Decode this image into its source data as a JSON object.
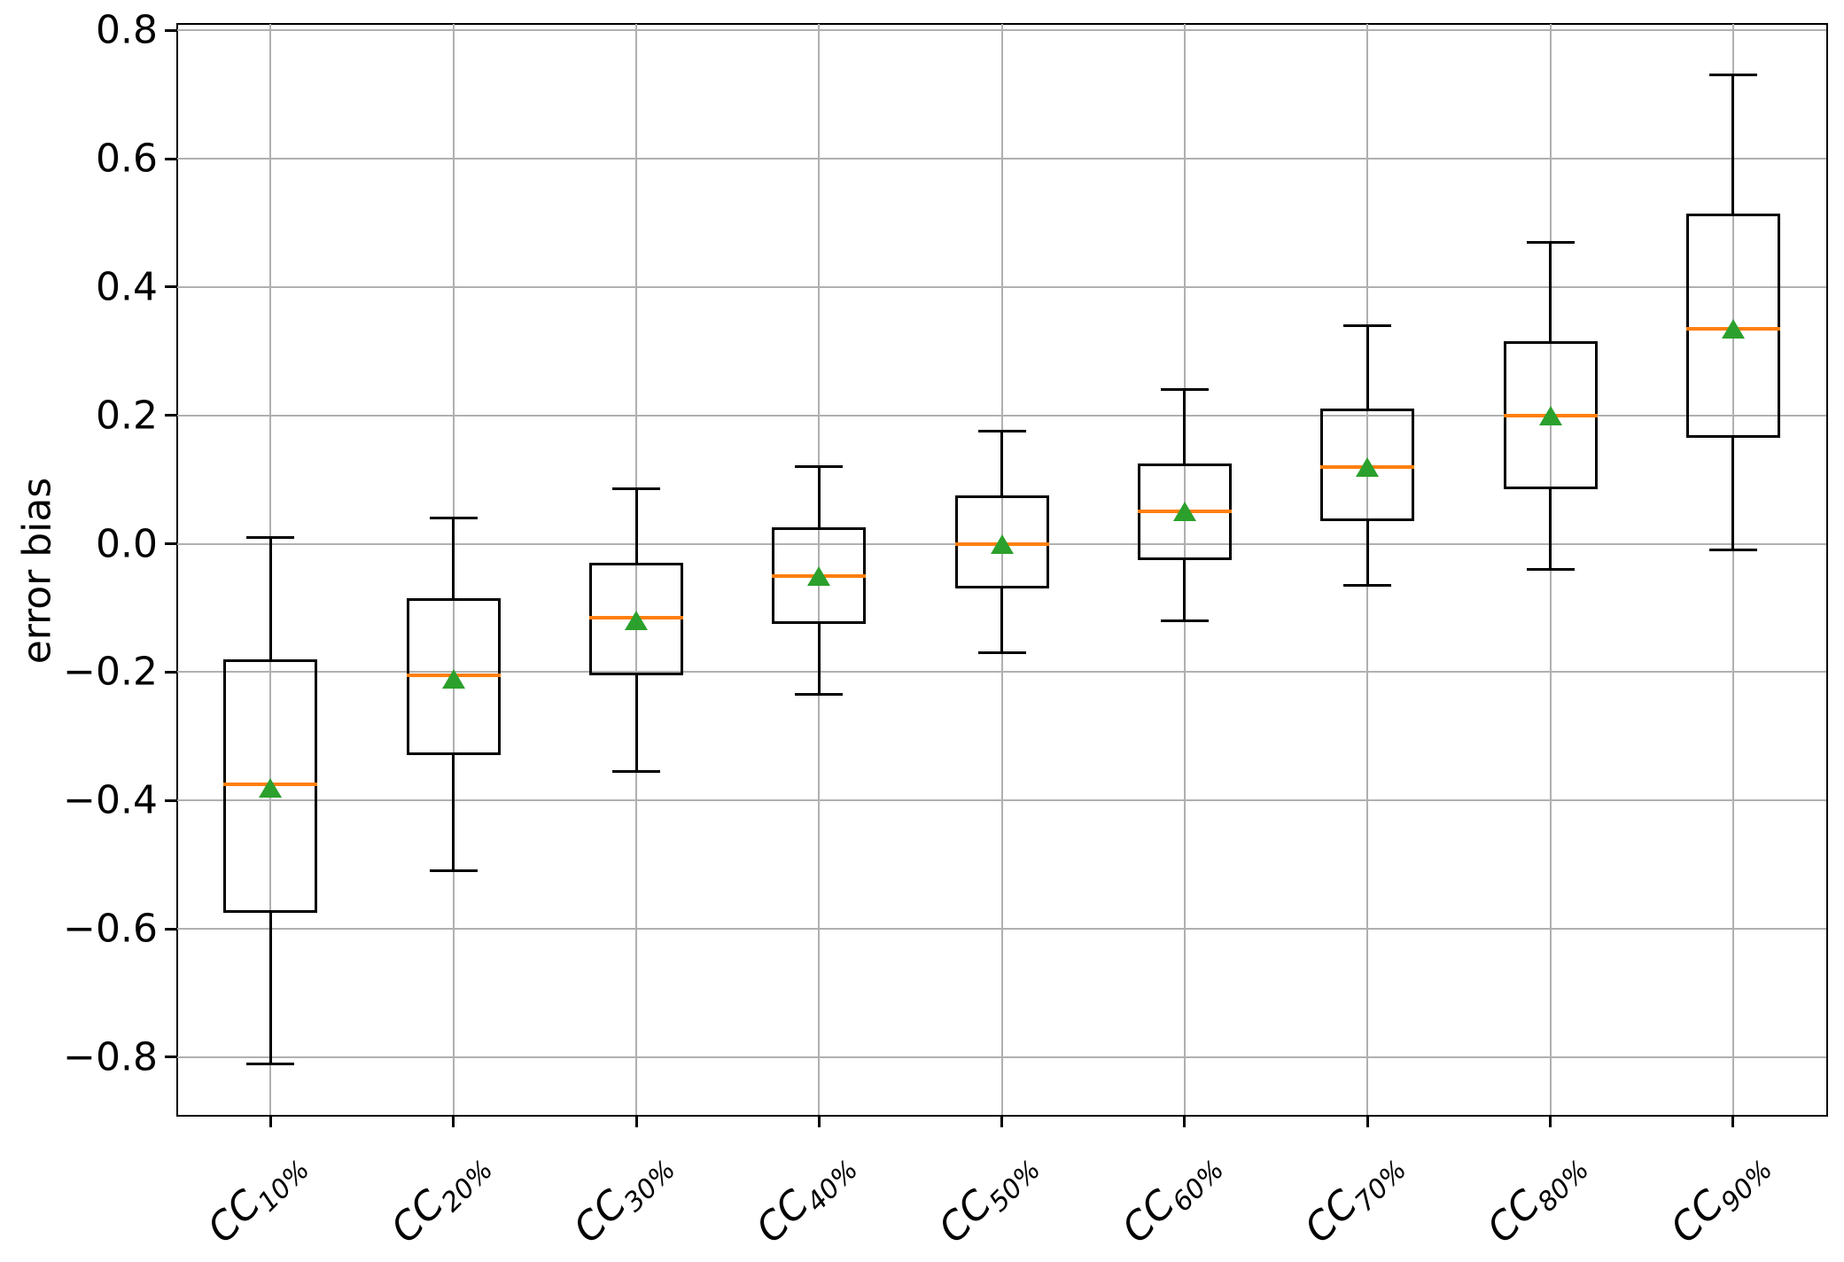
{
  "chart_data": {
    "type": "boxplot",
    "title": "",
    "xlabel": "",
    "ylabel": "error bias",
    "ylim": [
      -0.89,
      0.81
    ],
    "yticks": [
      0.8,
      0.6,
      0.4,
      0.2,
      0.0,
      -0.2,
      -0.4,
      -0.6,
      -0.8
    ],
    "ytick_labels": [
      "0.8",
      "0.6",
      "0.4",
      "0.2",
      "0.0",
      "−0.2",
      "−0.4",
      "−0.6",
      "−0.8"
    ],
    "grid": true,
    "legend": false,
    "xtick_rotation_deg": 45,
    "categories": [
      "CC10%",
      "CC20%",
      "CC30%",
      "CC40%",
      "CC50%",
      "CC60%",
      "CC70%",
      "CC80%",
      "CC90%"
    ],
    "boxes": [
      {
        "label_base": "CC",
        "label_sub": "10%",
        "whisker_low": -0.81,
        "q1": -0.575,
        "median": -0.375,
        "mean": -0.38,
        "q3": -0.18,
        "whisker_high": 0.01
      },
      {
        "label_base": "CC",
        "label_sub": "20%",
        "whisker_low": -0.51,
        "q1": -0.33,
        "median": -0.205,
        "mean": -0.21,
        "q3": -0.085,
        "whisker_high": 0.04
      },
      {
        "label_base": "CC",
        "label_sub": "30%",
        "whisker_low": -0.355,
        "q1": -0.205,
        "median": -0.115,
        "mean": -0.12,
        "q3": -0.03,
        "whisker_high": 0.085
      },
      {
        "label_base": "CC",
        "label_sub": "40%",
        "whisker_low": -0.235,
        "q1": -0.125,
        "median": -0.05,
        "mean": -0.05,
        "q3": 0.025,
        "whisker_high": 0.12
      },
      {
        "label_base": "CC",
        "label_sub": "50%",
        "whisker_low": -0.17,
        "q1": -0.07,
        "median": 0.0,
        "mean": 0.0,
        "q3": 0.075,
        "whisker_high": 0.175
      },
      {
        "label_base": "CC",
        "label_sub": "60%",
        "whisker_low": -0.12,
        "q1": -0.025,
        "median": 0.05,
        "mean": 0.05,
        "q3": 0.125,
        "whisker_high": 0.24
      },
      {
        "label_base": "CC",
        "label_sub": "70%",
        "whisker_low": -0.065,
        "q1": 0.035,
        "median": 0.12,
        "mean": 0.12,
        "q3": 0.21,
        "whisker_high": 0.34
      },
      {
        "label_base": "CC",
        "label_sub": "80%",
        "whisker_low": -0.04,
        "q1": 0.085,
        "median": 0.2,
        "mean": 0.2,
        "q3": 0.315,
        "whisker_high": 0.47
      },
      {
        "label_base": "CC",
        "label_sub": "90%",
        "whisker_low": -0.01,
        "q1": 0.165,
        "median": 0.335,
        "mean": 0.335,
        "q3": 0.515,
        "whisker_high": 0.73
      }
    ],
    "colors": {
      "box_line": "#000000",
      "median_line": "#ff7f0e",
      "mean_marker": "#2ca02c",
      "grid_line": "#b0b0b0",
      "background": "#ffffff"
    }
  }
}
